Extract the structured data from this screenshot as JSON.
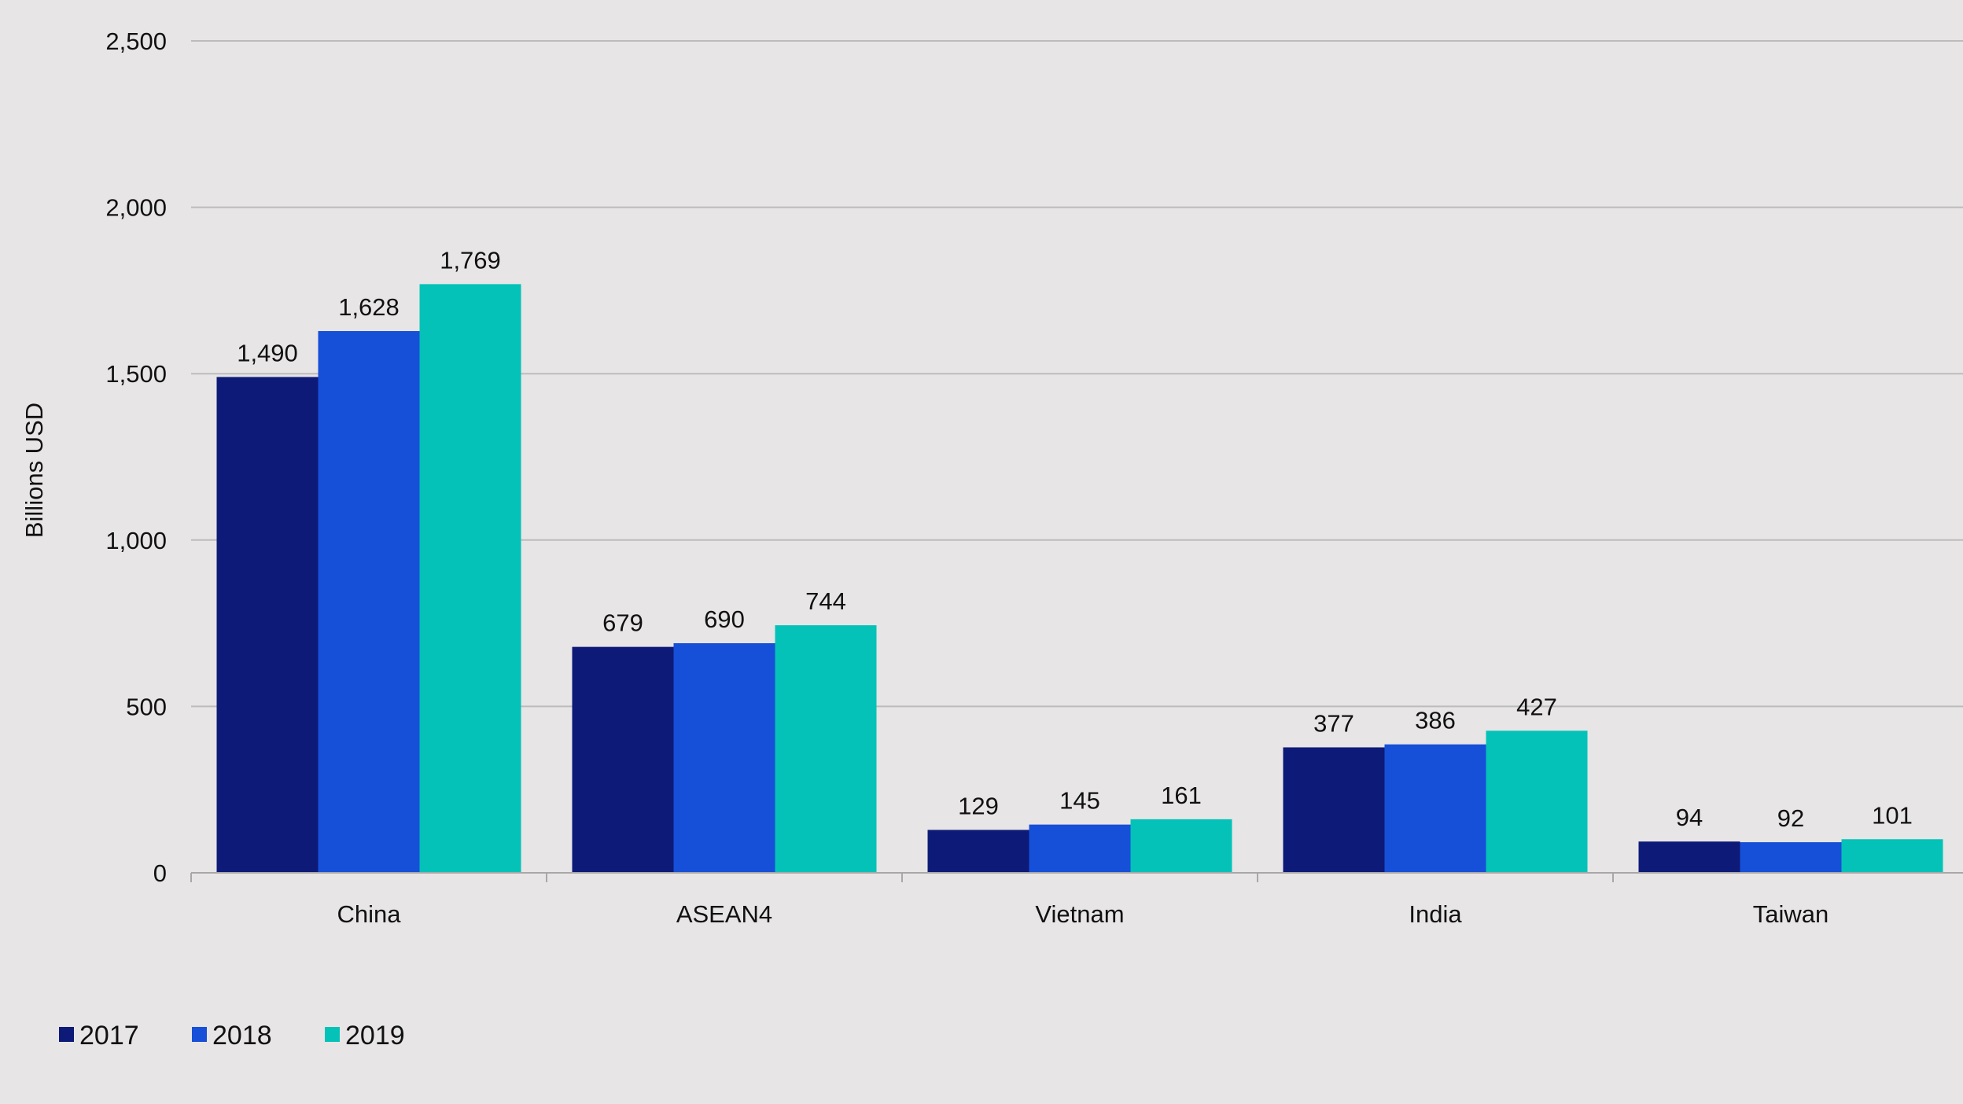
{
  "chart_data": {
    "type": "bar",
    "title": "",
    "xlabel": "",
    "ylabel": "Billions USD",
    "ylim": [
      0,
      2500
    ],
    "yticks": [
      0,
      500,
      1000,
      1500,
      2000,
      2500
    ],
    "ytick_labels": [
      "0",
      "500",
      "1,000",
      "1,500",
      "2,000",
      "2,500"
    ],
    "grid": true,
    "legend_position": "bottom-left",
    "categories": [
      "China",
      "ASEAN4",
      "Vietnam",
      "India",
      "Taiwan"
    ],
    "series": [
      {
        "name": "2017",
        "color": "#0d1a78",
        "values": [
          1490,
          679,
          129,
          377,
          94
        ],
        "labels": [
          "1,490",
          "679",
          "129",
          "377",
          "94"
        ]
      },
      {
        "name": "2018",
        "color": "#1650d8",
        "values": [
          1628,
          690,
          145,
          386,
          92
        ],
        "labels": [
          "1,628",
          "690",
          "145",
          "386",
          "92"
        ]
      },
      {
        "name": "2019",
        "color": "#04c2b7",
        "values": [
          1769,
          744,
          161,
          427,
          101
        ],
        "labels": [
          "1,769",
          "744",
          "161",
          "427",
          "101"
        ]
      }
    ]
  }
}
